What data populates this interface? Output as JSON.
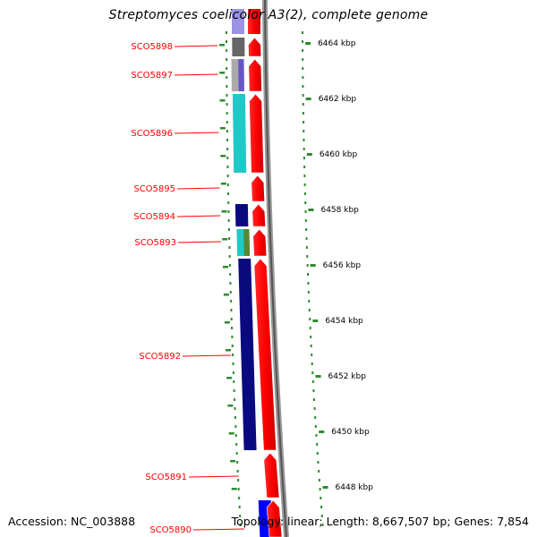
{
  "title": "Streptomyces coelicolor A3(2), complete genome",
  "accession": "Accession: NC_003888",
  "summary": "Topology: linear; Length: 8,667,507 bp; Genes: 7,854",
  "colors": {
    "gene_label": "#ff0000",
    "strand_arrow": "#ff0000",
    "backbone": "#888888",
    "dots": "#2e8b2e"
  },
  "ruler": [
    {
      "label": "6464 kbp",
      "kbp": 6464
    },
    {
      "label": "6462 kbp",
      "kbp": 6462
    },
    {
      "label": "6460 kbp",
      "kbp": 6460
    },
    {
      "label": "6458 kbp",
      "kbp": 6458
    },
    {
      "label": "6456 kbp",
      "kbp": 6456
    },
    {
      "label": "6454 kbp",
      "kbp": 6454
    },
    {
      "label": "6452 kbp",
      "kbp": 6452
    },
    {
      "label": "6450 kbp",
      "kbp": 6450
    },
    {
      "label": "6448 kbp",
      "kbp": 6448
    }
  ],
  "genes": [
    {
      "name": "SCO5898",
      "color": "#666666"
    },
    {
      "name": "SCO5897",
      "color": "#aaaaaa"
    },
    {
      "name": "SCO5896",
      "color": "#20c8c8"
    },
    {
      "name": "SCO5895",
      "color": ""
    },
    {
      "name": "SCO5894",
      "color": "#0a0a80"
    },
    {
      "name": "SCO5893",
      "color": "#20c8c8"
    },
    {
      "name": "SCO5892",
      "color": "#0a0a80"
    },
    {
      "name": "SCO5891",
      "color": ""
    },
    {
      "name": "SCO5890",
      "color": "#0000ff"
    }
  ]
}
